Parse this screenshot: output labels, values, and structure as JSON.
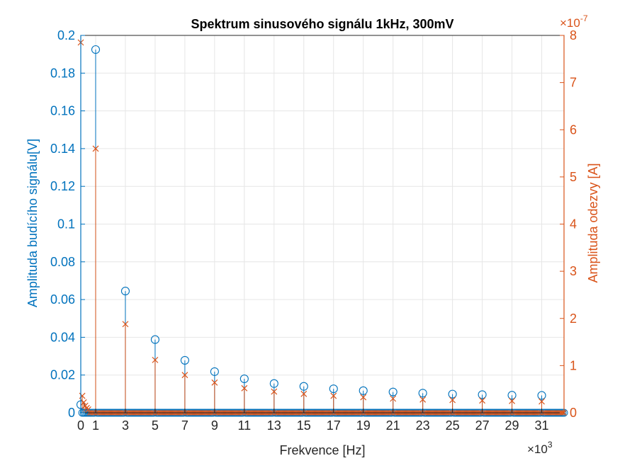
{
  "chart_data": {
    "type": "stem",
    "title": "Spektrum sinusového signálu 1kHz, 300mV",
    "xlabel": "Frekvence [Hz]",
    "x_exponent_label": "×10",
    "x_exponent_value": "3",
    "x_scale": 1000,
    "xlim": [
      0,
      32500
    ],
    "xticks": [
      0,
      1000,
      3000,
      5000,
      7000,
      9000,
      11000,
      13000,
      15000,
      17000,
      19000,
      21000,
      23000,
      25000,
      27000,
      29000,
      31000
    ],
    "xtick_labels": [
      "0",
      "1",
      "3",
      "5",
      "7",
      "9",
      "11",
      "13",
      "15",
      "17",
      "19",
      "21",
      "23",
      "25",
      "27",
      "29",
      "31"
    ],
    "grid": true,
    "left_axis": {
      "label": "Amplituda budícího signálu[V]",
      "ylim": [
        0,
        0.2
      ],
      "ticks": [
        0,
        0.02,
        0.04,
        0.06,
        0.08,
        0.1,
        0.12,
        0.14,
        0.16,
        0.18,
        0.2
      ],
      "tick_labels": [
        "0",
        "0.02",
        "0.04",
        "0.06",
        "0.08",
        "0.1",
        "0.12",
        "0.14",
        "0.16",
        "0.18",
        "0.2"
      ],
      "color": "#0072BD"
    },
    "right_axis": {
      "label": "Amplituda odezvy [A]",
      "ylim": [
        0,
        8e-07
      ],
      "ticks": [
        0,
        1,
        2,
        3,
        4,
        5,
        6,
        7,
        8
      ],
      "tick_labels": [
        "0",
        "1",
        "2",
        "3",
        "4",
        "5",
        "6",
        "7",
        "8"
      ],
      "exponent_label": "×10",
      "exponent_value": "-7",
      "color": "#D95319"
    },
    "series": [
      {
        "axis": "left",
        "marker": "circle",
        "color": "#0072BD",
        "baseline_step": 100,
        "x": [
          0,
          1000,
          3000,
          5000,
          7000,
          9000,
          11000,
          13000,
          15000,
          17000,
          19000,
          21000,
          23000,
          25000,
          27000,
          29000,
          31000
        ],
        "y": [
          0.0043,
          0.1925,
          0.0645,
          0.0388,
          0.0278,
          0.0218,
          0.018,
          0.0155,
          0.014,
          0.0127,
          0.0117,
          0.011,
          0.0104,
          0.0099,
          0.0096,
          0.0093,
          0.0092
        ]
      },
      {
        "axis": "right",
        "marker": "x",
        "color": "#D95319",
        "baseline_step": 100,
        "x": [
          0,
          100,
          200,
          300,
          400,
          500,
          1000,
          3000,
          5000,
          7000,
          9000,
          11000,
          13000,
          15000,
          17000,
          19000,
          21000,
          23000,
          25000,
          27000,
          29000,
          31000
        ],
        "y": [
          7.85e-07,
          3.6e-08,
          2.2e-08,
          1.5e-08,
          1e-08,
          7e-09,
          5.6e-07,
          1.88e-07,
          1.12e-07,
          8e-08,
          6.4e-08,
          5.2e-08,
          4.5e-08,
          4e-08,
          3.6e-08,
          3.3e-08,
          3e-08,
          2.8e-08,
          2.7e-08,
          2.6e-08,
          2.5e-08,
          2.4e-08
        ]
      }
    ]
  }
}
